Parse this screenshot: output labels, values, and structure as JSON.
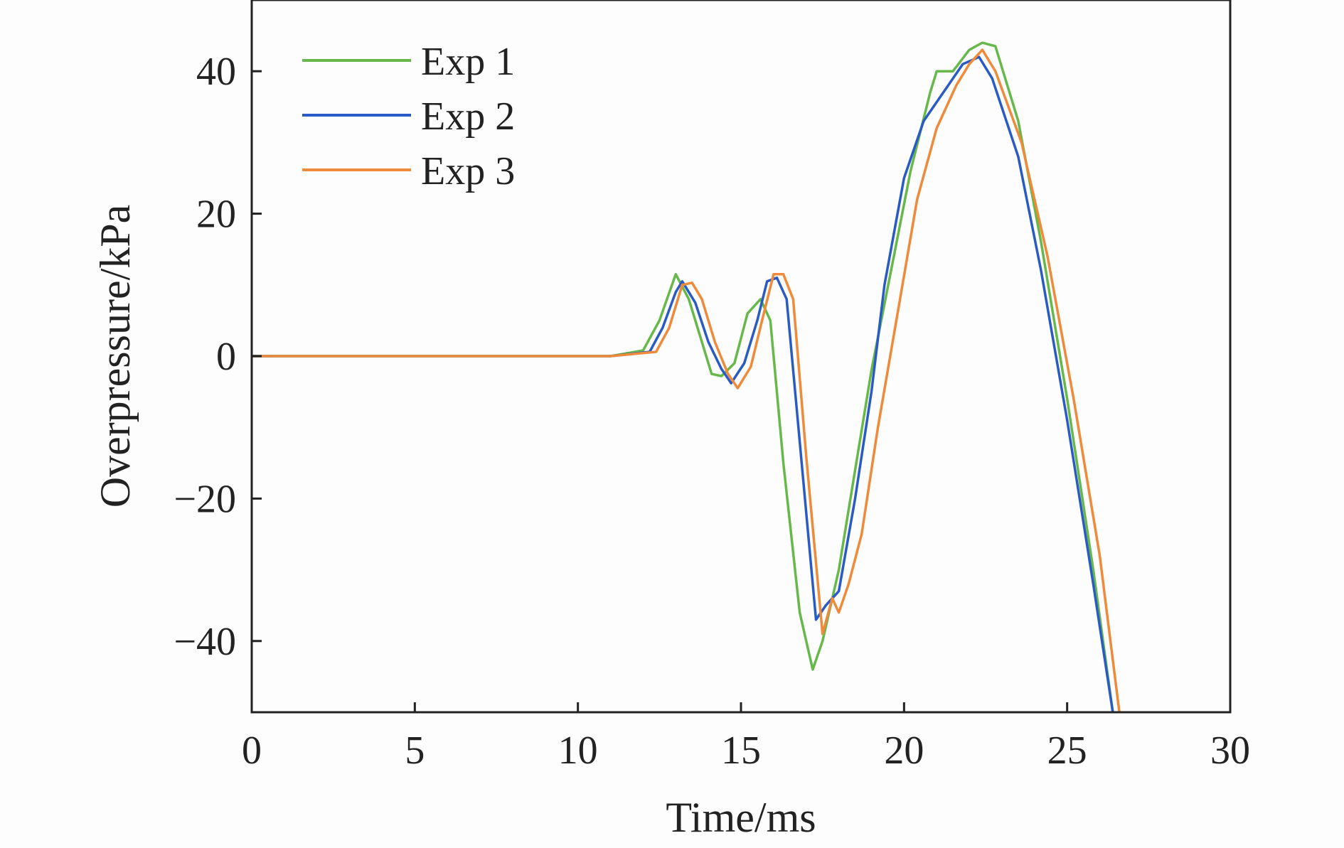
{
  "chart_data": {
    "type": "line",
    "title": "",
    "xlabel": "Time/ms",
    "ylabel": "Overpressure/kPa",
    "xlim": [
      0,
      30
    ],
    "ylim": [
      -50,
      50
    ],
    "xticks": [
      0,
      5,
      10,
      15,
      20,
      25,
      30
    ],
    "yticks": [
      -40,
      -20,
      0,
      20,
      40
    ],
    "xtick_labels": [
      "0",
      "5",
      "10",
      "15",
      "20",
      "25",
      "30"
    ],
    "ytick_labels": [
      "−40",
      "−20",
      "0",
      "20",
      "40"
    ],
    "grid": false,
    "legend": "top-left",
    "series": [
      {
        "name": "Exp 1",
        "color": "#66b84a",
        "x": [
          0,
          11,
          12,
          12.5,
          13.0,
          13.4,
          13.8,
          14.1,
          14.4,
          14.8,
          15.2,
          15.6,
          15.9,
          16.3,
          16.8,
          17.2,
          17.5,
          18.0,
          18.5,
          19.0,
          19.6,
          20.2,
          20.8,
          21.0,
          21.5,
          22.0,
          22.4,
          22.8,
          23.5,
          24.2,
          25.0,
          25.8,
          26.4
        ],
        "values": [
          0,
          0,
          0.8,
          5,
          11.5,
          8,
          2,
          -2.5,
          -2.8,
          -1,
          6,
          8,
          5,
          -15,
          -36,
          -44,
          -40,
          -30,
          -16,
          -2,
          12,
          26,
          37,
          40,
          40,
          43,
          44,
          43.5,
          33,
          16,
          -6,
          -30,
          -50
        ]
      },
      {
        "name": "Exp 2",
        "color": "#2a5bc4",
        "x": [
          0,
          11,
          12.2,
          12.6,
          13.0,
          13.2,
          13.6,
          14.0,
          14.4,
          14.7,
          15.1,
          15.5,
          15.8,
          16.1,
          16.4,
          16.8,
          17.3,
          17.6,
          18.0,
          18.5,
          19.0,
          19.4,
          20.0,
          20.6,
          21.2,
          21.8,
          22.3,
          22.7,
          23.5,
          24.2,
          25.0,
          25.8,
          26.4
        ],
        "values": [
          0,
          0,
          0.6,
          4,
          9,
          10.5,
          7.5,
          2,
          -1.8,
          -3.8,
          -1,
          5,
          10.5,
          11,
          8,
          -12,
          -37,
          -35,
          -33,
          -20,
          -5,
          10,
          25,
          33,
          37,
          41,
          42,
          39,
          28,
          12,
          -9,
          -32,
          -50
        ]
      },
      {
        "name": "Exp 3",
        "color": "#ef8a3a",
        "x": [
          0,
          11,
          12.4,
          12.8,
          13.2,
          13.5,
          13.8,
          14.2,
          14.6,
          14.9,
          15.3,
          15.7,
          16.0,
          16.3,
          16.6,
          17.0,
          17.5,
          17.8,
          18.0,
          18.3,
          18.7,
          19.2,
          19.8,
          20.4,
          21.0,
          21.6,
          22.0,
          22.4,
          22.8,
          23.6,
          24.4,
          25.2,
          26.0,
          26.6
        ],
        "values": [
          0,
          0,
          0.6,
          4,
          10,
          10.3,
          8,
          2,
          -2.5,
          -4.5,
          -1.5,
          6,
          11.5,
          11.5,
          8,
          -14,
          -39,
          -34,
          -36,
          -32,
          -25,
          -10,
          6,
          22,
          32,
          38,
          41,
          43,
          40,
          30,
          14,
          -6,
          -28,
          -50
        ]
      }
    ]
  }
}
